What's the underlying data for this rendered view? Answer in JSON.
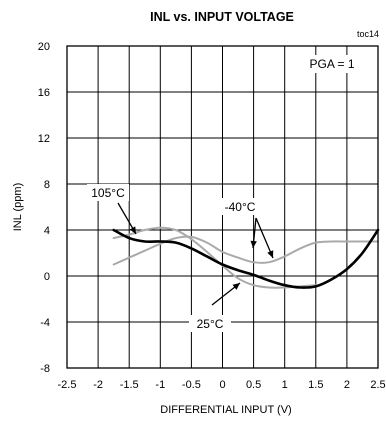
{
  "chart_data": {
    "type": "line",
    "title": "INL vs. INPUT VOLTAGE",
    "figure_tag": "toc14",
    "xlabel": "DIFFERENTIAL INPUT (V)",
    "ylabel": "INL (ppm)",
    "xlim": [
      -2.5,
      2.5
    ],
    "ylim": [
      -8,
      20
    ],
    "x_ticks": [
      "-2.5",
      "-2",
      "-1.5",
      "-1",
      "-0.5",
      "0",
      "0.5",
      "1",
      "1.5",
      "2",
      "2.5"
    ],
    "y_ticks": [
      "20",
      "16",
      "12",
      "8",
      "4",
      "0",
      "-4",
      "-8"
    ],
    "grid": true,
    "annotation_box": "PGA = 1",
    "series": [
      {
        "name": "25°C",
        "color": "#000000",
        "x": [
          -1.75,
          -1.5,
          -1.25,
          -1.0,
          -0.75,
          -0.5,
          -0.25,
          0.0,
          0.25,
          0.5,
          0.75,
          1.0,
          1.25,
          1.5,
          1.75,
          2.0,
          2.25,
          2.5
        ],
        "y": [
          4.0,
          3.3,
          3.0,
          3.0,
          2.9,
          2.4,
          1.7,
          1.0,
          0.5,
          0.1,
          -0.4,
          -0.8,
          -1.0,
          -0.9,
          -0.3,
          0.6,
          2.0,
          4.0
        ]
      },
      {
        "name": "105°C",
        "color": "#aaaaaa",
        "x": [
          -1.75,
          -1.5,
          -1.25,
          -1.0,
          -0.75,
          -0.5,
          -0.25,
          0.0,
          0.25,
          0.5,
          0.75,
          1.0,
          1.25,
          1.5
        ],
        "y": [
          3.3,
          3.6,
          4.0,
          4.2,
          4.0,
          3.2,
          2.1,
          0.9,
          -0.2,
          -0.8,
          -1.0,
          -1.0,
          -0.9,
          -0.8
        ]
      },
      {
        "name": "-40°C",
        "color": "#aaaaaa",
        "x": [
          -1.75,
          -1.5,
          -1.25,
          -1.0,
          -0.75,
          -0.5,
          -0.25,
          0.0,
          0.25,
          0.5,
          0.75,
          1.0,
          1.25,
          1.5,
          1.75,
          2.0,
          2.25,
          2.5
        ],
        "y": [
          1.0,
          1.6,
          2.2,
          2.8,
          3.3,
          3.4,
          2.9,
          2.1,
          1.6,
          1.2,
          1.2,
          1.7,
          2.4,
          2.9,
          3.0,
          3.0,
          3.0,
          3.0
        ]
      }
    ],
    "labels": [
      {
        "text": "105°C",
        "series": 1
      },
      {
        "text": "-40°C",
        "series": 2
      },
      {
        "text": "25°C",
        "series": 0
      }
    ]
  }
}
